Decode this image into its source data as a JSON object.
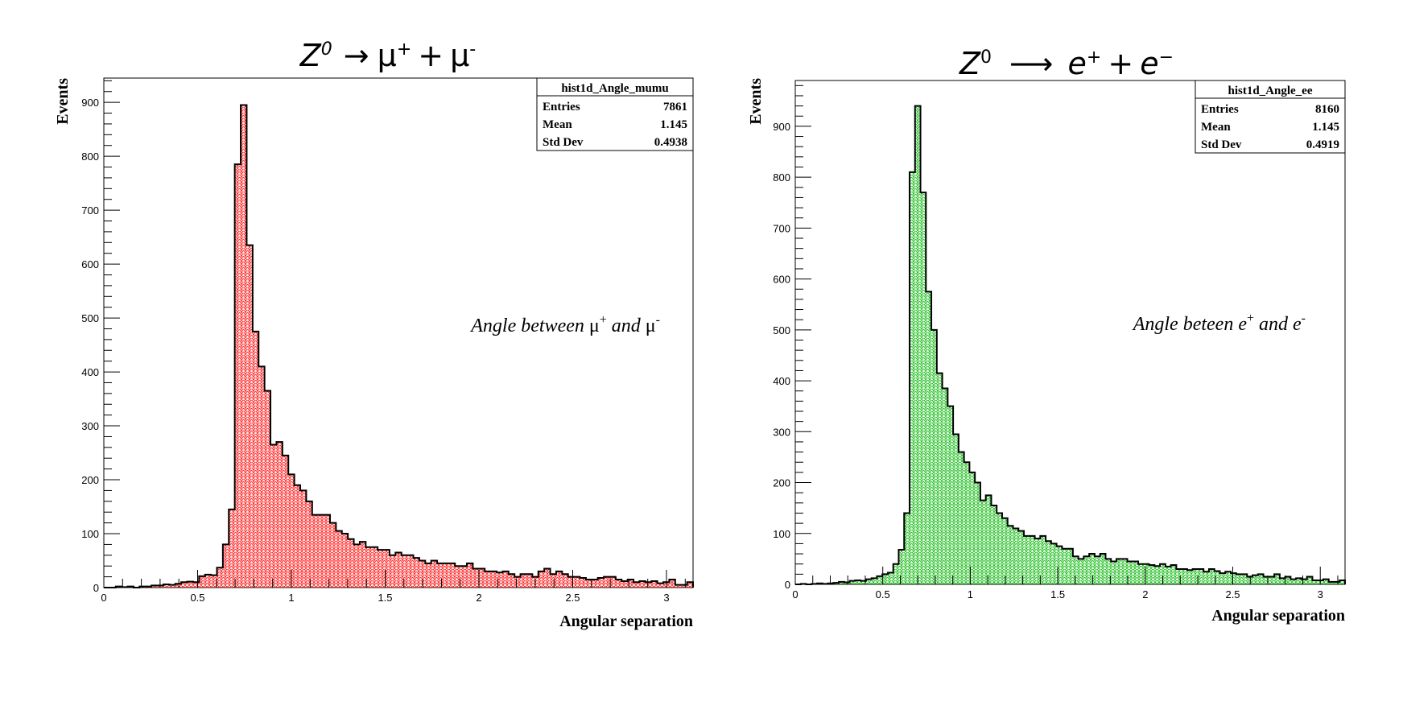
{
  "chart_data": [
    {
      "type": "bar",
      "title": "Z^0 → μ^+ + μ^-",
      "xlabel": "Angular separation",
      "ylabel": "Events",
      "xlim": [
        0,
        3.14159
      ],
      "ylim": [
        0,
        945
      ],
      "x_ticks": [
        "0",
        "0.5",
        "1",
        "1.5",
        "2",
        "2.5",
        "3"
      ],
      "y_ticks": [
        "0",
        "100",
        "200",
        "300",
        "400",
        "500",
        "600",
        "700",
        "800",
        "900"
      ],
      "color": "#ff0000",
      "fill_pattern": "hatched",
      "stats": {
        "name": "hist1d_Angle_mumu",
        "rows": [
          {
            "label": "Entries",
            "value": "7861"
          },
          {
            "label": "Mean",
            "value": "1.145"
          },
          {
            "label": "Std Dev",
            "value": "0.4938"
          }
        ]
      },
      "annotation": {
        "pre": "Angle between ",
        "p1": "μ",
        "s1": "+",
        "mid": " and ",
        "p2": "μ",
        "s2": "-"
      },
      "values": [
        0,
        0,
        2,
        1,
        2,
        0,
        2,
        2,
        4,
        4,
        6,
        5,
        7,
        10,
        11,
        10,
        21,
        24,
        23,
        37,
        80,
        145,
        785,
        895,
        635,
        475,
        410,
        365,
        265,
        270,
        245,
        210,
        190,
        180,
        160,
        135,
        135,
        135,
        120,
        105,
        100,
        90,
        80,
        85,
        75,
        75,
        70,
        70,
        60,
        65,
        60,
        60,
        55,
        50,
        45,
        50,
        45,
        45,
        45,
        40,
        40,
        45,
        35,
        35,
        30,
        30,
        28,
        30,
        25,
        20,
        25,
        25,
        20,
        30,
        35,
        25,
        30,
        25,
        20,
        20,
        18,
        15,
        15,
        18,
        20,
        20,
        15,
        12,
        15,
        10,
        12,
        10,
        12,
        8,
        10,
        15,
        5,
        5,
        10
      ],
      "label_title": {
        "main": "Z",
        "sup": "0",
        "arrow": "→",
        "p1": "μ",
        "s1": "+",
        "plus": "+",
        "p2": "μ",
        "s2": "-"
      }
    },
    {
      "type": "bar",
      "title": "Z^0 ⟶ e^+ + e^-",
      "xlabel": "Angular separation",
      "ylabel": "Events",
      "xlim": [
        0,
        3.14159
      ],
      "ylim": [
        0,
        990
      ],
      "x_ticks": [
        "0",
        "0.5",
        "1",
        "1.5",
        "2",
        "2.5",
        "3"
      ],
      "y_ticks": [
        "0",
        "100",
        "200",
        "300",
        "400",
        "500",
        "600",
        "700",
        "800",
        "900"
      ],
      "color": "#00cc00",
      "fill_pattern": "hatched",
      "stats": {
        "name": "hist1d_Angle_ee",
        "rows": [
          {
            "label": "Entries",
            "value": "8160"
          },
          {
            "label": "Mean",
            "value": "1.145"
          },
          {
            "label": "Std Dev",
            "value": "0.4919"
          }
        ]
      },
      "annotation": {
        "pre": "Angle beteen ",
        "p1": "e",
        "s1": "+",
        "mid": " and ",
        "p2": "e",
        "s2": "-"
      },
      "values": [
        0,
        1,
        0,
        1,
        2,
        1,
        2,
        3,
        5,
        4,
        7,
        8,
        7,
        10,
        12,
        16,
        20,
        23,
        40,
        68,
        140,
        810,
        940,
        770,
        575,
        500,
        415,
        385,
        350,
        295,
        260,
        240,
        220,
        200,
        165,
        175,
        155,
        140,
        130,
        115,
        110,
        105,
        95,
        95,
        90,
        95,
        85,
        80,
        75,
        70,
        70,
        55,
        50,
        55,
        60,
        55,
        60,
        50,
        45,
        50,
        50,
        45,
        45,
        40,
        40,
        38,
        36,
        40,
        35,
        38,
        30,
        30,
        28,
        30,
        30,
        25,
        30,
        26,
        22,
        25,
        22,
        20,
        20,
        15,
        18,
        20,
        15,
        15,
        20,
        12,
        15,
        10,
        12,
        10,
        15,
        8,
        8,
        10,
        5,
        5,
        8
      ],
      "label_title": {
        "main": "Z",
        "sup": "0",
        "arrow": "⟶",
        "p1": "e",
        "s1": "+",
        "plus": "+",
        "p2": "e",
        "s2": "−"
      }
    }
  ]
}
